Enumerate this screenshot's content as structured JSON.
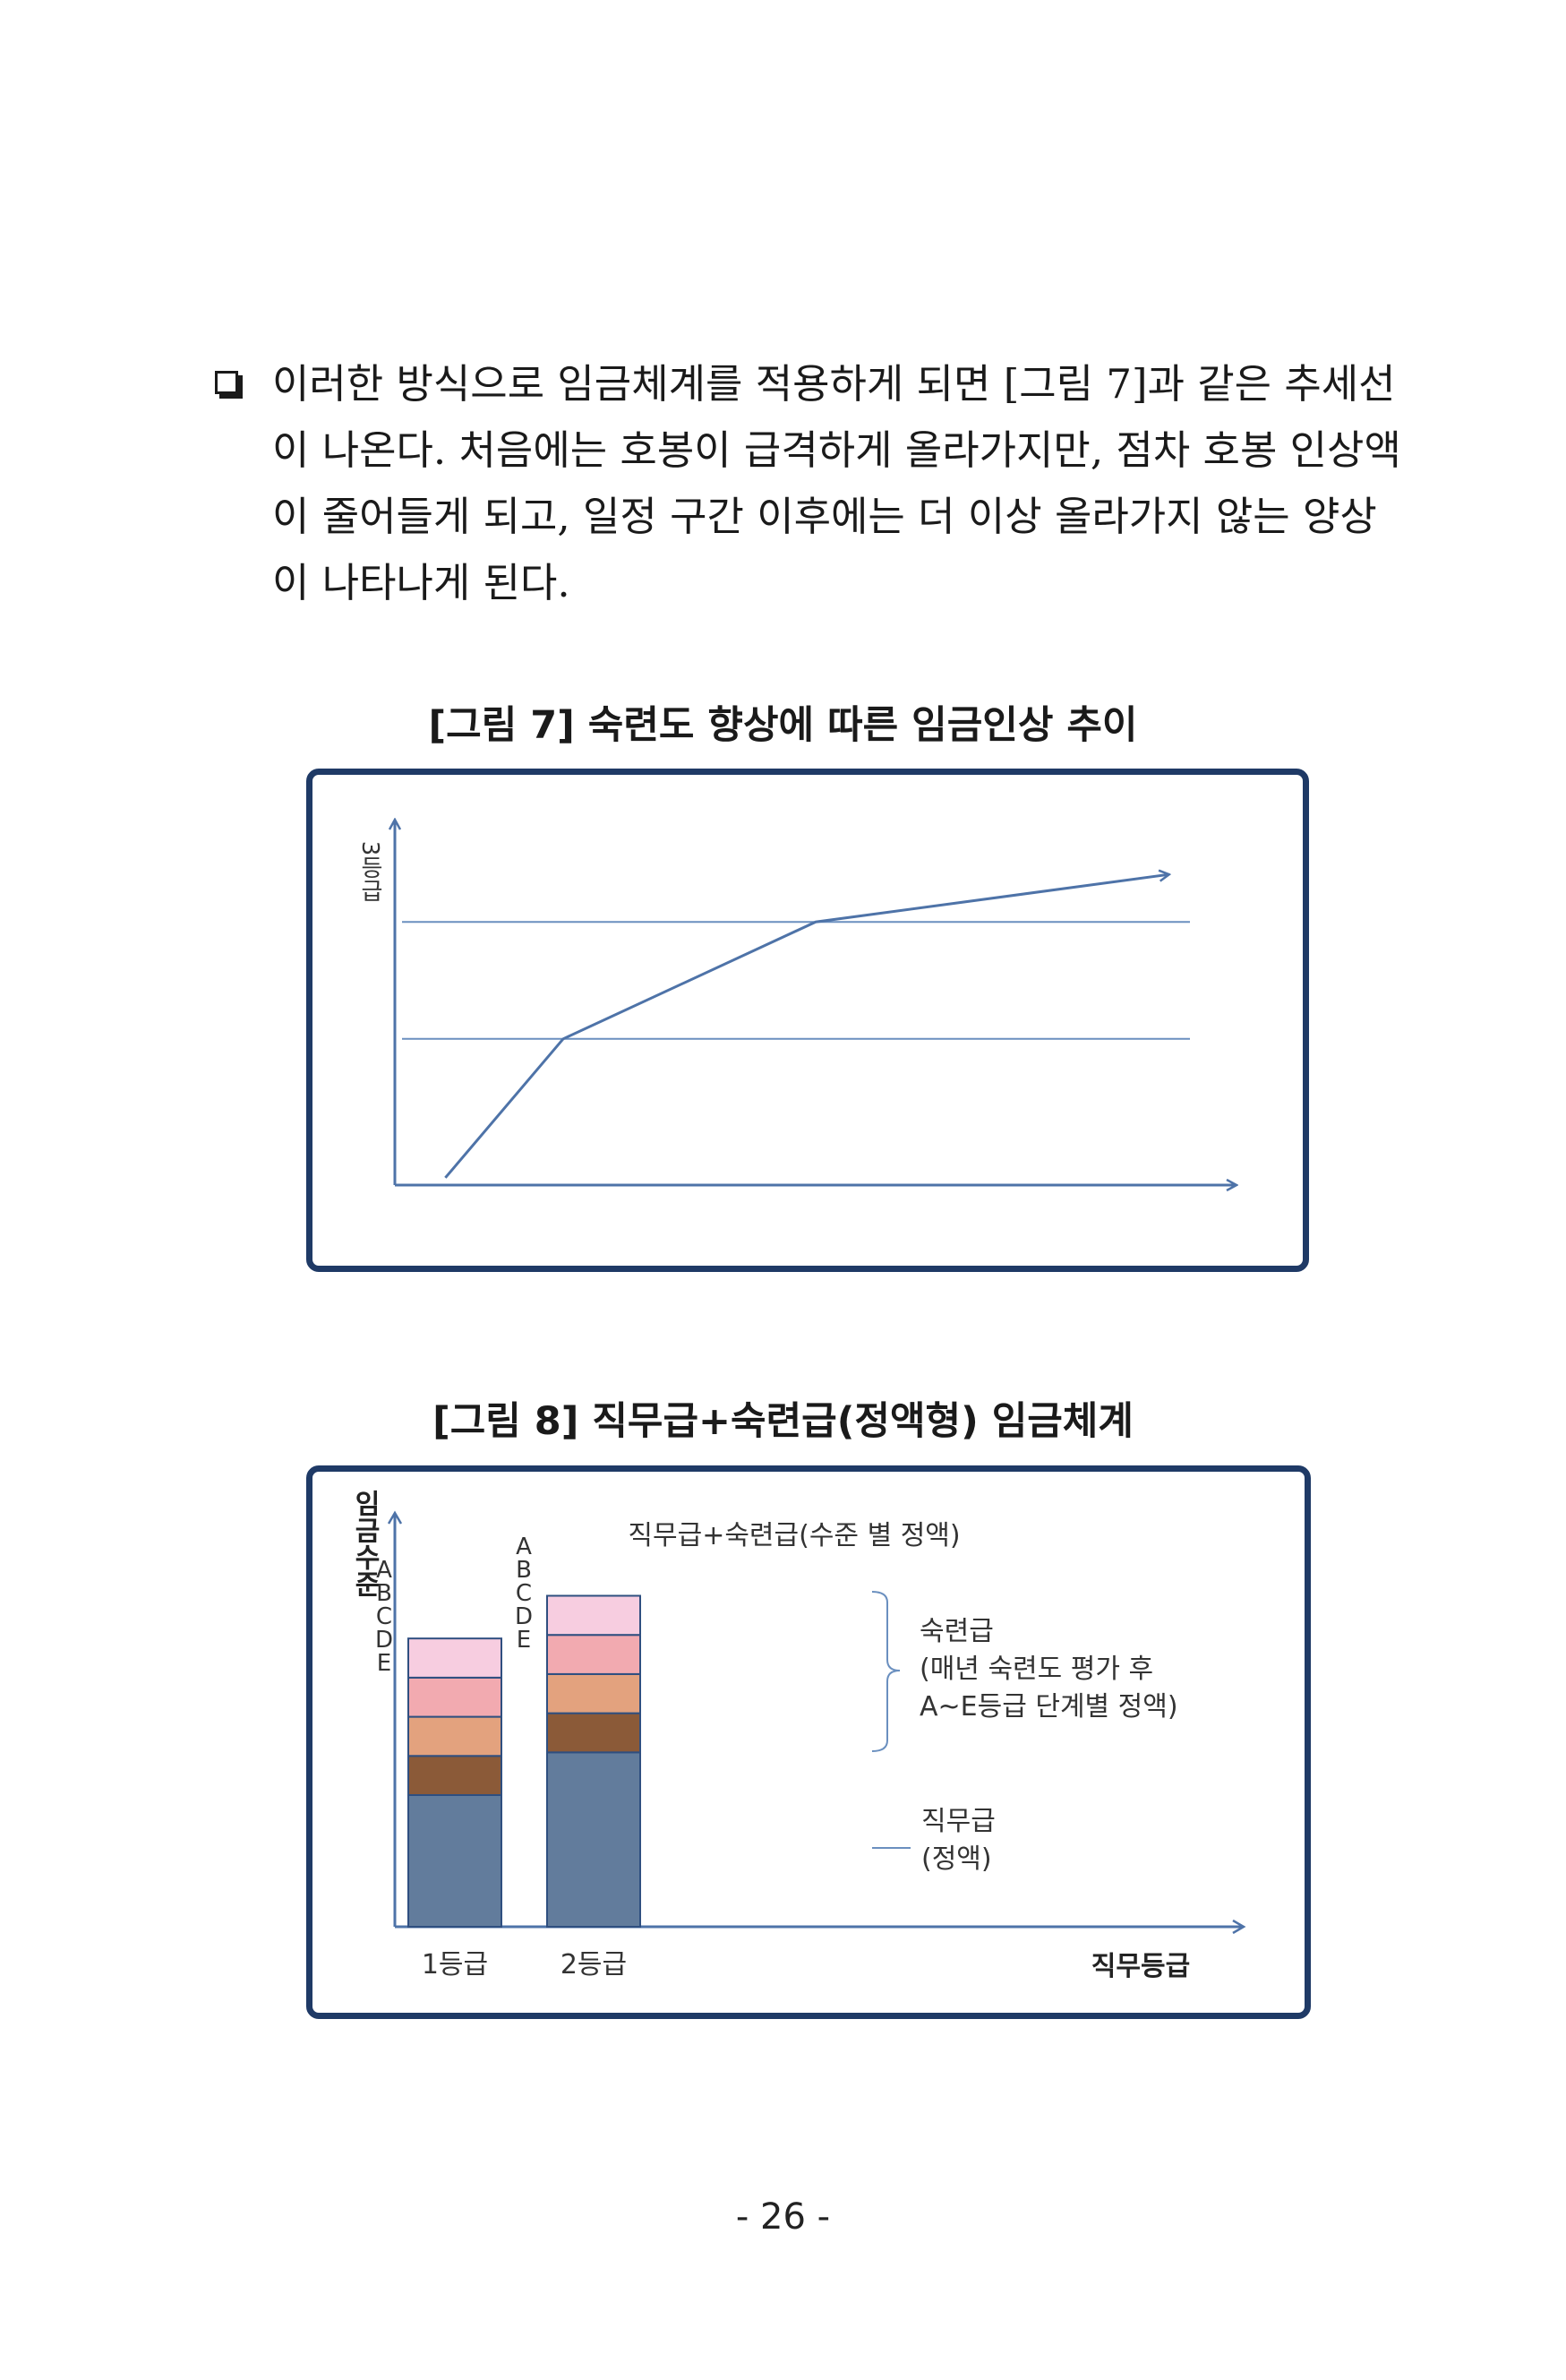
{
  "paragraph": {
    "lines": [
      "이러한 방식으로 임금체계를 적용하게 되면 [그림 7]과 같은 추세선",
      "이 나온다. 처음에는 호봉이 급격하게 올라가지만, 점차 호봉 인상액",
      "이 줄어들게 되고, 일정 구간 이후에는 더 이상 올라가지 않는 양상",
      "이 나타나게 된다."
    ]
  },
  "figure7": {
    "caption": "[그림 7] 숙련도 향상에 따른 임금인상 추이",
    "y_label": "3등급"
  },
  "figure8": {
    "caption": "[그림 8] 직무급+숙련급(정액형) 임금체계",
    "subtitle": "직무급+숙련급(수준 별 정액)",
    "y_label": "임금수준",
    "x_label": "직무등급",
    "grade_letters": [
      "A",
      "B",
      "C",
      "D",
      "E"
    ],
    "annotation_skill": [
      "숙련급",
      "(매년 숙련도 평가 후",
      "A~E등급 단계별 정액)"
    ],
    "annotation_job": [
      "직무급",
      "(정액)"
    ]
  },
  "chart_data": [
    {
      "type": "line",
      "title": "[그림 7] 숙련도 향상에 따른 임금인상 추이",
      "ylabel": "3등급",
      "xlabel": "",
      "series": [
        {
          "points": [
            [
              0.06,
              0.02
            ],
            [
              0.2,
              0.4
            ],
            [
              0.5,
              0.72
            ],
            [
              0.92,
              0.85
            ]
          ]
        }
      ],
      "reference_lines": [
        0.4,
        0.72
      ],
      "grid": false
    },
    {
      "type": "bar",
      "title": "[그림 8] 직무급+숙련급(정액형) 임금체계",
      "subtitle": "직무급+숙련급(수준 별 정액)",
      "categories": [
        "1등급",
        "2등급"
      ],
      "xlabel": "직무등급",
      "ylabel": "임금수준",
      "stacked": true,
      "series": [
        {
          "name": "직무급",
          "values": [
            0.37,
            0.49
          ],
          "color": "#627c9c"
        },
        {
          "name": "E",
          "values": [
            0.11,
            0.11
          ],
          "color": "#8b5a38"
        },
        {
          "name": "D",
          "values": [
            0.11,
            0.11
          ],
          "color": "#e3a27e"
        },
        {
          "name": "C",
          "values": [
            0.11,
            0.11
          ],
          "color": "#f2aab0"
        },
        {
          "name": "B",
          "values": [
            0.11,
            0.11
          ],
          "color": "#f7cde0"
        }
      ]
    }
  ],
  "page": {
    "number": "- 26 -"
  }
}
